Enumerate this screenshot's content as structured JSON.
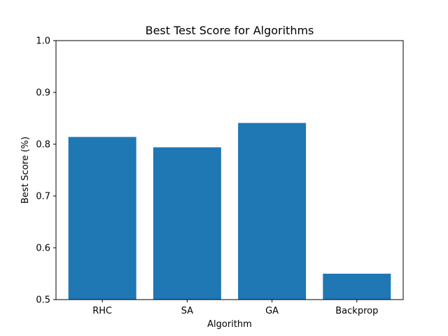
{
  "chart_data": {
    "type": "bar",
    "title": "Best Test Score for Algorithms",
    "xlabel": "Algorithm",
    "ylabel": "Best Score (%)",
    "categories": [
      "RHC",
      "SA",
      "GA",
      "Backprop"
    ],
    "values": [
      0.814,
      0.794,
      0.841,
      0.55
    ],
    "ylim": [
      0.5,
      1.0
    ],
    "yticks": [
      "0.5",
      "0.6",
      "0.7",
      "0.8",
      "0.9",
      "1.0"
    ],
    "bar_color": "#1f77b4",
    "grid": false,
    "legend": "none"
  }
}
